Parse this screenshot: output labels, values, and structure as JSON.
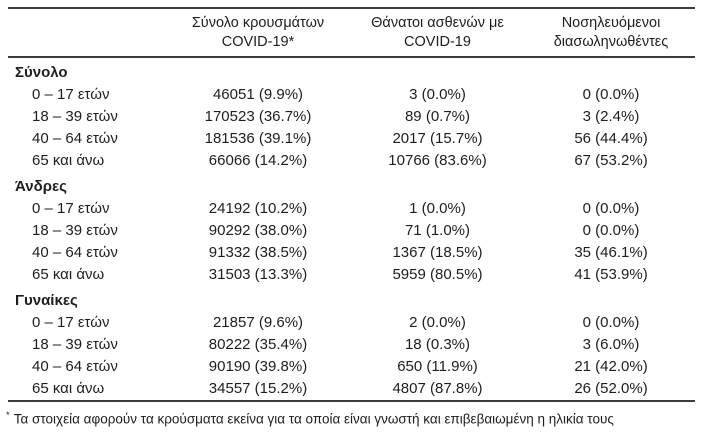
{
  "table": {
    "header": {
      "col1": "",
      "col2_line1": "Σύνολο κρουσμάτων",
      "col2_line2": "COVID-19*",
      "col3_line1": "Θάνατοι ασθενών με",
      "col3_line2": "COVID-19",
      "col4_line1": "Νοσηλευόμενοι",
      "col4_line2": "διασωληνωθέντες"
    },
    "sections": [
      {
        "label": "Σύνολο",
        "rows": [
          {
            "label": "0 – 17 ετών",
            "cases": "46051 (9.9%)",
            "deaths": "3 (0.0%)",
            "intubated": "0 (0.0%)"
          },
          {
            "label": "18 – 39 ετών",
            "cases": "170523 (36.7%)",
            "deaths": "89 (0.7%)",
            "intubated": "3 (2.4%)"
          },
          {
            "label": "40 – 64 ετών",
            "cases": "181536 (39.1%)",
            "deaths": "2017 (15.7%)",
            "intubated": "56 (44.4%)"
          },
          {
            "label": "65 και άνω",
            "cases": "66066 (14.2%)",
            "deaths": "10766 (83.6%)",
            "intubated": "67 (53.2%)"
          }
        ]
      },
      {
        "label": "Άνδρες",
        "rows": [
          {
            "label": "0 – 17 ετών",
            "cases": "24192 (10.2%)",
            "deaths": "1 (0.0%)",
            "intubated": "0 (0.0%)"
          },
          {
            "label": "18 – 39 ετών",
            "cases": "90292 (38.0%)",
            "deaths": "71 (1.0%)",
            "intubated": "0 (0.0%)"
          },
          {
            "label": "40 – 64 ετών",
            "cases": "91332 (38.5%)",
            "deaths": "1367 (18.5%)",
            "intubated": "35 (46.1%)"
          },
          {
            "label": "65 και άνω",
            "cases": "31503 (13.3%)",
            "deaths": "5959 (80.5%)",
            "intubated": "41 (53.9%)"
          }
        ]
      },
      {
        "label": "Γυναίκες",
        "rows": [
          {
            "label": "0 – 17 ετών",
            "cases": "21857 (9.6%)",
            "deaths": "2 (0.0%)",
            "intubated": "0 (0.0%)"
          },
          {
            "label": "18 – 39 ετών",
            "cases": "80222 (35.4%)",
            "deaths": "18 (0.3%)",
            "intubated": "3 (6.0%)"
          },
          {
            "label": "40 – 64 ετών",
            "cases": "90190 (39.8%)",
            "deaths": "650 (11.9%)",
            "intubated": "21 (42.0%)"
          },
          {
            "label": "65 και άνω",
            "cases": "34557 (15.2%)",
            "deaths": "4807 (87.8%)",
            "intubated": "26 (52.0%)"
          }
        ]
      }
    ],
    "footnote": {
      "marker": "*",
      "text": "Τα στοιχεία αφορούν τα κρούσματα εκείνα για τα οποία είναι γνωστή και επιβεβαιωμένη η ηλικία τους"
    }
  },
  "colors": {
    "text": "#1e1e1e",
    "rule": "#3d3d3d",
    "background": "#ffffff"
  }
}
